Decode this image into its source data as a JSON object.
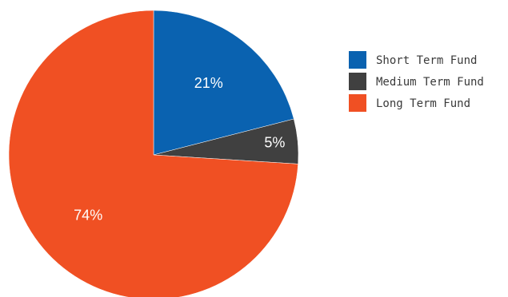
{
  "chart_data": {
    "type": "pie",
    "title": "",
    "legend_position": "right",
    "start_angle_deg": 0,
    "direction": "clockwise",
    "slices": [
      {
        "label": "Short Term Fund",
        "value": 21,
        "display": "21%",
        "color": "#0a62b0"
      },
      {
        "label": "Medium Term Fund",
        "value": 5,
        "display": "5%",
        "color": "#404040"
      },
      {
        "label": "Long Term Fund",
        "value": 74,
        "display": "74%",
        "color": "#f05023"
      }
    ]
  }
}
